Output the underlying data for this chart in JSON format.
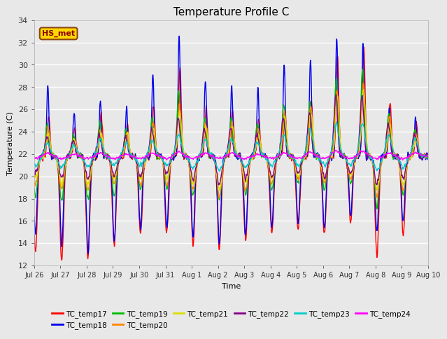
{
  "title": "Temperature Profile C",
  "xlabel": "Time",
  "ylabel": "Temperature (C)",
  "ylim": [
    12,
    34
  ],
  "yticks": [
    12,
    14,
    16,
    18,
    20,
    22,
    24,
    26,
    28,
    30,
    32,
    34
  ],
  "annotation_text": "HS_met",
  "annotation_color": "#8B0000",
  "annotation_bg": "#FFD700",
  "annotation_edge": "#8B4513",
  "bg_color": "#E8E8E8",
  "plot_bg": "#E8E8E8",
  "grid_color": "#FFFFFF",
  "series_colors": {
    "TC_temp17": "#FF0000",
    "TC_temp18": "#0000EE",
    "TC_temp19": "#00BB00",
    "TC_temp20": "#FF8800",
    "TC_temp21": "#DDDD00",
    "TC_temp22": "#880088",
    "TC_temp23": "#00CCCC",
    "TC_temp24": "#FF00FF"
  },
  "legend_order": [
    "TC_temp17",
    "TC_temp18",
    "TC_temp19",
    "TC_temp20",
    "TC_temp21",
    "TC_temp22",
    "TC_temp23",
    "TC_temp24"
  ],
  "xtick_labels": [
    "Jul 26",
    "Jul 27",
    "Jul 28",
    "Jul 29",
    "Jul 30",
    "Jul 31",
    "Aug 1",
    "Aug 2",
    "Aug 3",
    "Aug 4",
    "Aug 5",
    "Aug 6",
    "Aug 7",
    "Aug 8",
    "Aug 9",
    "Aug 10"
  ],
  "n_points": 1440,
  "days": 15
}
